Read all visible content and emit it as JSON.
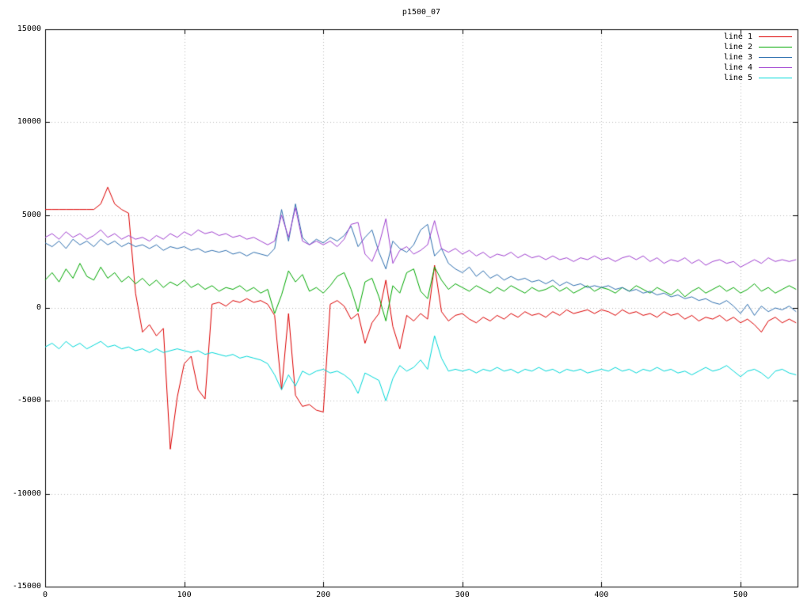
{
  "chart_data": {
    "type": "line",
    "title": "p1500_07",
    "xlabel": "",
    "ylabel": "",
    "xlim": [
      0,
      541
    ],
    "ylim": [
      -15000,
      15000
    ],
    "x_ticks": [
      0,
      100,
      200,
      300,
      400,
      500
    ],
    "y_ticks": [
      -15000,
      -10000,
      -5000,
      0,
      5000,
      10000,
      15000
    ],
    "grid": "dotted",
    "legend_position": "top-right",
    "background": "#ffffff",
    "grid_color": "#bcbcbc",
    "axis_color": "#000000",
    "x": [
      0,
      5,
      10,
      15,
      20,
      25,
      30,
      35,
      40,
      45,
      50,
      55,
      60,
      65,
      70,
      75,
      80,
      85,
      90,
      95,
      100,
      105,
      110,
      115,
      120,
      125,
      130,
      135,
      140,
      145,
      150,
      155,
      160,
      165,
      170,
      175,
      180,
      185,
      190,
      195,
      200,
      205,
      210,
      215,
      220,
      225,
      230,
      235,
      240,
      245,
      250,
      255,
      260,
      265,
      270,
      275,
      280,
      285,
      290,
      295,
      300,
      305,
      310,
      315,
      320,
      325,
      330,
      335,
      340,
      345,
      350,
      355,
      360,
      365,
      370,
      375,
      380,
      385,
      390,
      395,
      400,
      405,
      410,
      415,
      420,
      425,
      430,
      435,
      440,
      445,
      450,
      455,
      460,
      465,
      470,
      475,
      480,
      485,
      490,
      495,
      500,
      505,
      510,
      515,
      520,
      525,
      530,
      535,
      540
    ],
    "series": [
      {
        "name": "line 1",
        "color": "#dd0000",
        "values": [
          5300,
          5300,
          5300,
          5300,
          5300,
          5300,
          5300,
          5300,
          5600,
          6500,
          5600,
          5300,
          5100,
          800,
          -1300,
          -900,
          -1500,
          -1100,
          -7600,
          -4800,
          -3000,
          -2600,
          -4400,
          -4900,
          200,
          300,
          100,
          400,
          300,
          500,
          300,
          400,
          200,
          -400,
          -4400,
          -300,
          -4700,
          -5300,
          -5200,
          -5500,
          -5600,
          200,
          400,
          100,
          -600,
          -300,
          -1900,
          -800,
          -300,
          1500,
          -1000,
          -2200,
          -400,
          -700,
          -300,
          -600,
          2300,
          -200,
          -700,
          -400,
          -300,
          -600,
          -800,
          -500,
          -700,
          -400,
          -600,
          -300,
          -500,
          -200,
          -400,
          -300,
          -500,
          -200,
          -400,
          -100,
          -300,
          -200,
          -100,
          -300,
          -100,
          -200,
          -400,
          -100,
          -300,
          -200,
          -400,
          -300,
          -500,
          -200,
          -400,
          -300,
          -600,
          -400,
          -700,
          -500,
          -600,
          -400,
          -700,
          -500,
          -800,
          -600,
          -900,
          -1300,
          -700,
          -500,
          -800,
          -600,
          -800
        ]
      },
      {
        "name": "line 2",
        "color": "#00a800",
        "values": [
          1500,
          1900,
          1400,
          2100,
          1600,
          2400,
          1700,
          1500,
          2200,
          1600,
          1900,
          1400,
          1700,
          1300,
          1600,
          1200,
          1500,
          1100,
          1400,
          1200,
          1500,
          1100,
          1300,
          1000,
          1200,
          900,
          1100,
          1000,
          1200,
          900,
          1100,
          800,
          1000,
          -300,
          700,
          2000,
          1400,
          1800,
          900,
          1100,
          800,
          1200,
          1700,
          1900,
          1000,
          -200,
          1400,
          1600,
          600,
          -700,
          1200,
          800,
          1900,
          2100,
          900,
          500,
          2200,
          1500,
          1000,
          1300,
          1100,
          900,
          1200,
          1000,
          800,
          1100,
          900,
          1200,
          1000,
          800,
          1100,
          900,
          1000,
          1200,
          900,
          1100,
          800,
          1000,
          1200,
          900,
          1100,
          1000,
          800,
          1100,
          900,
          1200,
          1000,
          800,
          1100,
          900,
          700,
          1000,
          600,
          900,
          1100,
          800,
          1000,
          1200,
          900,
          1100,
          800,
          1000,
          1300,
          900,
          1100,
          800,
          1000,
          1200,
          1000
        ]
      },
      {
        "name": "line 3",
        "color": "#3070b0",
        "values": [
          3500,
          3300,
          3600,
          3200,
          3700,
          3400,
          3600,
          3300,
          3700,
          3400,
          3600,
          3300,
          3500,
          3300,
          3400,
          3200,
          3400,
          3100,
          3300,
          3200,
          3300,
          3100,
          3200,
          3000,
          3100,
          3000,
          3100,
          2900,
          3000,
          2800,
          3000,
          2900,
          2800,
          3200,
          5300,
          3600,
          5600,
          3800,
          3400,
          3700,
          3500,
          3800,
          3600,
          3900,
          4400,
          3300,
          3800,
          4200,
          3000,
          2100,
          3600,
          3200,
          3000,
          3400,
          4200,
          4500,
          2800,
          3200,
          2400,
          2100,
          1900,
          2200,
          1700,
          2000,
          1600,
          1800,
          1500,
          1700,
          1500,
          1600,
          1400,
          1500,
          1300,
          1500,
          1200,
          1400,
          1200,
          1300,
          1100,
          1200,
          1100,
          1200,
          1000,
          1100,
          900,
          1000,
          800,
          900,
          700,
          800,
          600,
          700,
          500,
          600,
          400,
          500,
          300,
          200,
          400,
          100,
          -300,
          200,
          -400,
          100,
          -200,
          0,
          -100,
          100,
          -200
        ]
      },
      {
        "name": "line 4",
        "color": "#a040d0",
        "values": [
          3800,
          4000,
          3700,
          4100,
          3800,
          4000,
          3700,
          3900,
          4200,
          3800,
          4000,
          3700,
          3900,
          3700,
          3800,
          3600,
          3900,
          3700,
          4000,
          3800,
          4100,
          3900,
          4200,
          4000,
          4100,
          3900,
          4000,
          3800,
          3900,
          3700,
          3800,
          3600,
          3400,
          3600,
          5000,
          3800,
          5400,
          3600,
          3400,
          3600,
          3400,
          3600,
          3300,
          3700,
          4500,
          4600,
          2900,
          2500,
          3400,
          4800,
          2400,
          3100,
          3300,
          2900,
          3100,
          3400,
          4700,
          3200,
          3000,
          3200,
          2900,
          3100,
          2800,
          3000,
          2700,
          2900,
          2800,
          3000,
          2700,
          2900,
          2700,
          2800,
          2600,
          2800,
          2600,
          2700,
          2500,
          2700,
          2600,
          2800,
          2600,
          2700,
          2500,
          2700,
          2800,
          2600,
          2800,
          2500,
          2700,
          2400,
          2600,
          2500,
          2700,
          2400,
          2600,
          2300,
          2500,
          2600,
          2400,
          2500,
          2200,
          2400,
          2600,
          2400,
          2700,
          2500,
          2600,
          2500,
          2600
        ]
      },
      {
        "name": "line 5",
        "color": "#00d8d8",
        "values": [
          -2100,
          -1900,
          -2200,
          -1800,
          -2100,
          -1900,
          -2200,
          -2000,
          -1800,
          -2100,
          -2000,
          -2200,
          -2100,
          -2300,
          -2200,
          -2400,
          -2200,
          -2400,
          -2300,
          -2200,
          -2300,
          -2400,
          -2300,
          -2500,
          -2400,
          -2500,
          -2600,
          -2500,
          -2700,
          -2600,
          -2700,
          -2800,
          -3000,
          -3600,
          -4400,
          -3600,
          -4200,
          -3400,
          -3600,
          -3400,
          -3300,
          -3500,
          -3400,
          -3600,
          -3900,
          -4600,
          -3500,
          -3700,
          -3900,
          -5000,
          -3800,
          -3100,
          -3400,
          -3200,
          -2800,
          -3300,
          -1500,
          -2700,
          -3400,
          -3300,
          -3400,
          -3300,
          -3500,
          -3300,
          -3400,
          -3200,
          -3400,
          -3300,
          -3500,
          -3300,
          -3400,
          -3200,
          -3400,
          -3300,
          -3500,
          -3300,
          -3400,
          -3300,
          -3500,
          -3400,
          -3300,
          -3400,
          -3200,
          -3400,
          -3300,
          -3500,
          -3300,
          -3400,
          -3200,
          -3400,
          -3300,
          -3500,
          -3400,
          -3600,
          -3400,
          -3200,
          -3400,
          -3300,
          -3100,
          -3400,
          -3700,
          -3400,
          -3300,
          -3500,
          -3800,
          -3400,
          -3300,
          -3500,
          -3600
        ]
      }
    ]
  }
}
